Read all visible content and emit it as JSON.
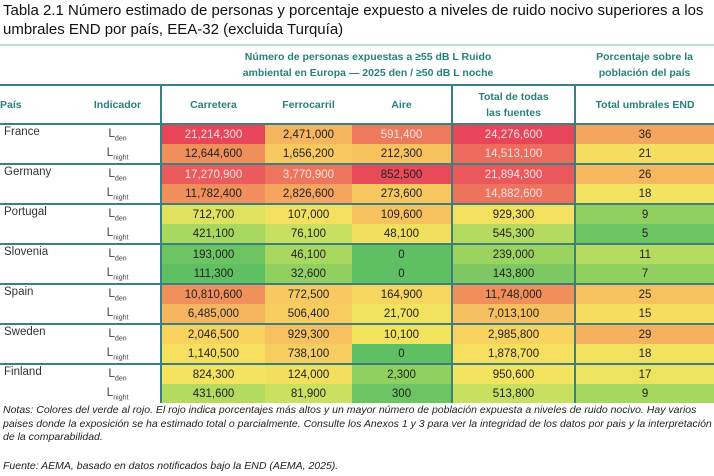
{
  "title": "Tabla 2.1 Número estimado de personas y porcentaje expuesto a niveles de ruido nocivo superiores a los umbrales END por país, EEA-32 (excluida Turquía)",
  "table": {
    "group_header_counts": "Número de personas expuestas a ≥55 dB L Ruido ambiental en Europa — 2025 den / ≥50 dB L noche",
    "group_header_pct": "Porcentaje sobre la población del país",
    "columns": [
      "País",
      "Indicador",
      "Carretera",
      "Ferrocarril",
      "Aire",
      "Total de todas las fuentes",
      "Total umbrales END"
    ],
    "countries": [
      {
        "name": "France",
        "rows": [
          {
            "ind": "L",
            "sub": "den",
            "values": [
              "21,214,300",
              "2,471,000",
              "591,400",
              "24,276,600",
              "36"
            ],
            "colors": [
              "#e8445a",
              "#f6b55f",
              "#ee7a5e",
              "#e8445a",
              "#f4a55e"
            ],
            "white": [
              true,
              false,
              true,
              true,
              false
            ]
          },
          {
            "ind": "L",
            "sub": "night",
            "values": [
              "12,644,600",
              "1,656,200",
              "212,300",
              "14,513,100",
              "21"
            ],
            "colors": [
              "#f08f5c",
              "#f8c960",
              "#f8c25e",
              "#ed6b5c",
              "#f5dd60"
            ],
            "white": [
              false,
              false,
              false,
              true,
              false
            ]
          }
        ]
      },
      {
        "name": "Germany",
        "rows": [
          {
            "ind": "L",
            "sub": "den",
            "values": [
              "17,270,900",
              "3,770,900",
              "852,500",
              "21,894,300",
              "26"
            ],
            "colors": [
              "#eb5a5c",
              "#ee755d",
              "#e84a5a",
              "#ea585c",
              "#f7b75f"
            ],
            "white": [
              true,
              true,
              false,
              true,
              false
            ]
          },
          {
            "ind": "L",
            "sub": "night",
            "values": [
              "11,782,400",
              "2,826,600",
              "273,600",
              "14,882,600",
              "18"
            ],
            "colors": [
              "#f08f5c",
              "#f5a55e",
              "#f8c860",
              "#ee735d",
              "#f3e360"
            ],
            "white": [
              false,
              false,
              false,
              true,
              false
            ]
          }
        ]
      },
      {
        "name": "Portugal",
        "rows": [
          {
            "ind": "L",
            "sub": "den",
            "values": [
              "712,700",
              "107,000",
              "109,600",
              "929,300",
              "9"
            ],
            "colors": [
              "#dfe25e",
              "#f3e05e",
              "#f8c25e",
              "#f3e05e",
              "#8fd05f"
            ],
            "white": [
              false,
              false,
              false,
              false,
              false
            ]
          },
          {
            "ind": "L",
            "sub": "night",
            "values": [
              "421,100",
              "76,100",
              "48,100",
              "545,300",
              "5"
            ],
            "colors": [
              "#a8d85f",
              "#c8e05f",
              "#f0e05e",
              "#b4da5f",
              "#6cc463"
            ],
            "white": [
              false,
              false,
              false,
              false,
              false
            ]
          }
        ]
      },
      {
        "name": "Slovenia",
        "rows": [
          {
            "ind": "L",
            "sub": "den",
            "values": [
              "193,000",
              "46,100",
              "0",
              "239,000",
              "11"
            ],
            "colors": [
              "#6cc463",
              "#a8d85f",
              "#5fbf63",
              "#9ad45f",
              "#b5dc5f"
            ],
            "white": [
              false,
              false,
              false,
              false,
              false
            ]
          },
          {
            "ind": "L",
            "sub": "night",
            "values": [
              "111,300",
              "32,600",
              "0",
              "143,800",
              "7"
            ],
            "colors": [
              "#5fbf63",
              "#90d060",
              "#5fbf63",
              "#7cc862",
              "#8fd05f"
            ],
            "white": [
              false,
              false,
              false,
              false,
              false
            ]
          }
        ]
      },
      {
        "name": "Spain",
        "rows": [
          {
            "ind": "L",
            "sub": "den",
            "values": [
              "10,810,600",
              "772,500",
              "164,900",
              "11,748,000",
              "25"
            ],
            "colors": [
              "#f0905c",
              "#f8c960",
              "#f6d65e",
              "#f08f5c",
              "#f7c15f"
            ],
            "white": [
              false,
              false,
              false,
              false,
              false
            ]
          },
          {
            "ind": "L",
            "sub": "night",
            "values": [
              "6,485,000",
              "506,400",
              "21,700",
              "7,013,100",
              "15"
            ],
            "colors": [
              "#f6b660",
              "#f8cd60",
              "#f2e35e",
              "#f6bf5f",
              "#f6dd5f"
            ],
            "white": [
              false,
              false,
              false,
              false,
              false
            ]
          }
        ]
      },
      {
        "name": "Sweden",
        "rows": [
          {
            "ind": "L",
            "sub": "den",
            "values": [
              "2,046,500",
              "929,300",
              "10,100",
              "2,985,800",
              "29"
            ],
            "colors": [
              "#f8d35f",
              "#f7c15f",
              "#f3e35e",
              "#f8d35f",
              "#f5b15e"
            ],
            "white": [
              false,
              false,
              false,
              false,
              false
            ]
          },
          {
            "ind": "L",
            "sub": "night",
            "values": [
              "1,140,500",
              "738,100",
              "0",
              "1,878,700",
              "18"
            ],
            "colors": [
              "#f6de5f",
              "#f6cd5f",
              "#5fbf63",
              "#f6de5f",
              "#f3e160"
            ],
            "white": [
              false,
              false,
              false,
              false,
              false
            ]
          }
        ]
      },
      {
        "name": "Finland",
        "rows": [
          {
            "ind": "L",
            "sub": "den",
            "values": [
              "824,300",
              "124,000",
              "2,300",
              "950,600",
              "17"
            ],
            "colors": [
              "#f3e35e",
              "#f3df5e",
              "#8fd05f",
              "#f3e35e",
              "#ece35e"
            ],
            "white": [
              false,
              false,
              false,
              false,
              false
            ]
          },
          {
            "ind": "L",
            "sub": "night",
            "values": [
              "431,600",
              "81,900",
              "300",
              "513,800",
              "9"
            ],
            "colors": [
              "#b4da5f",
              "#cbe05f",
              "#6cc463",
              "#c8e05f",
              "#a6d75f"
            ],
            "white": [
              false,
              false,
              false,
              false,
              false
            ]
          }
        ]
      }
    ]
  },
  "notes": "Notas: Colores del verde al rojo. El rojo indica porcentajes más altos y un mayor número de población expuesta a niveles de ruido nocivo. Hay varios paises donde la exposición se ha estimado total o parcialmente. Consulte los Anexos 1 y 3 para ver la integridad de los datos por pais y la interpretación de la comparabilidad.",
  "source": "Fuente: AEMA, basado en datos notificados bajo la END (AEMA, 2025)."
}
